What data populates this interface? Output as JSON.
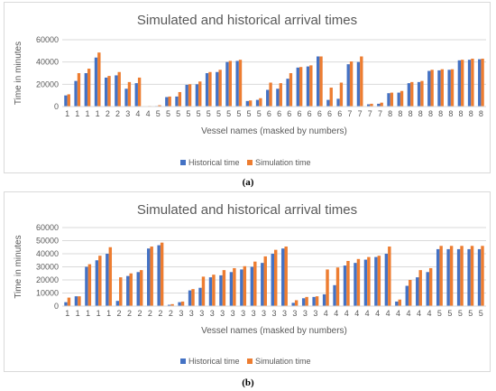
{
  "colors": {
    "historical": "#4472c4",
    "simulation": "#ed7d31",
    "grid": "#d9d9d9",
    "text": "#595959"
  },
  "captions": [
    "(a)",
    "(b)"
  ],
  "chart_data": [
    {
      "type": "bar",
      "title": "Simulated and historical arrival times",
      "xlabel": "Vessel names (masked by numbers)",
      "ylabel": "Time in minutes",
      "ylim": [
        0,
        60000
      ],
      "yticks": [
        "0",
        "20000",
        "40000",
        "60000"
      ],
      "grid": true,
      "legend_position": "bottom",
      "categories": [
        "1",
        "1",
        "1",
        "1",
        "2",
        "2",
        "3",
        "4",
        "4",
        "5",
        "5",
        "5",
        "5",
        "5",
        "5",
        "5",
        "5",
        "5",
        "5",
        "5",
        "6",
        "6",
        "6",
        "6",
        "6",
        "6",
        "6",
        "6",
        "7",
        "7",
        "7",
        "7",
        "8",
        "8",
        "8",
        "8",
        "8",
        "8",
        "8",
        "8",
        "8",
        "8"
      ],
      "series": [
        {
          "name": "Historical time",
          "values": [
            10000,
            23000,
            30000,
            44000,
            26000,
            28000,
            16000,
            21000,
            300,
            500,
            8500,
            9000,
            19500,
            20000,
            30000,
            31000,
            40000,
            41000,
            5000,
            6000,
            15000,
            16000,
            25000,
            35000,
            36000,
            45000,
            6000,
            7000,
            38000,
            40000,
            2000,
            2500,
            12000,
            12500,
            21000,
            22000,
            32000,
            32500,
            33000,
            41500,
            42000,
            42500
          ]
        },
        {
          "name": "Simulation time",
          "values": [
            11000,
            30000,
            34000,
            48500,
            27500,
            31000,
            22000,
            26000,
            500,
            1200,
            9000,
            13000,
            20000,
            22500,
            31000,
            33000,
            41000,
            42000,
            5500,
            7500,
            21500,
            21000,
            30000,
            35500,
            37000,
            45000,
            17000,
            21500,
            40500,
            45000,
            2500,
            3500,
            12500,
            14000,
            22000,
            23000,
            33000,
            33500,
            33500,
            42000,
            43000,
            43000
          ]
        }
      ]
    },
    {
      "type": "bar",
      "title": "Simulated and historical arrival times",
      "xlabel": "Vessel names (masked by numbers)",
      "ylabel": "Time in minutes",
      "ylim": [
        0,
        60000
      ],
      "yticks": [
        "0",
        "10000",
        "20000",
        "30000",
        "40000",
        "50000",
        "60000"
      ],
      "grid": true,
      "legend_position": "bottom",
      "categories": [
        "1",
        "1",
        "1",
        "1",
        "1",
        "2",
        "2",
        "2",
        "2",
        "2",
        "2",
        "3",
        "3",
        "3",
        "3",
        "3",
        "3",
        "3",
        "3",
        "3",
        "3",
        "3",
        "3",
        "3",
        "3",
        "4",
        "4",
        "4",
        "4",
        "4",
        "4",
        "4",
        "4",
        "4",
        "4",
        "4",
        "5",
        "5",
        "5",
        "5",
        "5"
      ],
      "series": [
        {
          "name": "Historical time",
          "values": [
            3000,
            7500,
            30000,
            35000,
            40000,
            4000,
            23000,
            26000,
            44000,
            46500,
            1000,
            3000,
            12000,
            14000,
            22000,
            23500,
            26000,
            28000,
            30000,
            33000,
            40000,
            44000,
            2500,
            6000,
            7000,
            9000,
            16000,
            31000,
            33000,
            35500,
            37500,
            40000,
            3500,
            15500,
            22000,
            26000,
            43500,
            43500,
            43500,
            43500,
            43500
          ]
        },
        {
          "name": "Simulation time",
          "values": [
            6500,
            7500,
            32000,
            38500,
            45000,
            22000,
            25000,
            27500,
            45500,
            48500,
            1500,
            3500,
            13000,
            22500,
            24000,
            27500,
            29000,
            30500,
            34000,
            38000,
            43000,
            45500,
            4500,
            7000,
            7500,
            28000,
            29500,
            34500,
            36000,
            37500,
            38500,
            45500,
            5000,
            20000,
            27500,
            29000,
            46000,
            46000,
            46000,
            46000,
            46000
          ]
        }
      ]
    }
  ]
}
